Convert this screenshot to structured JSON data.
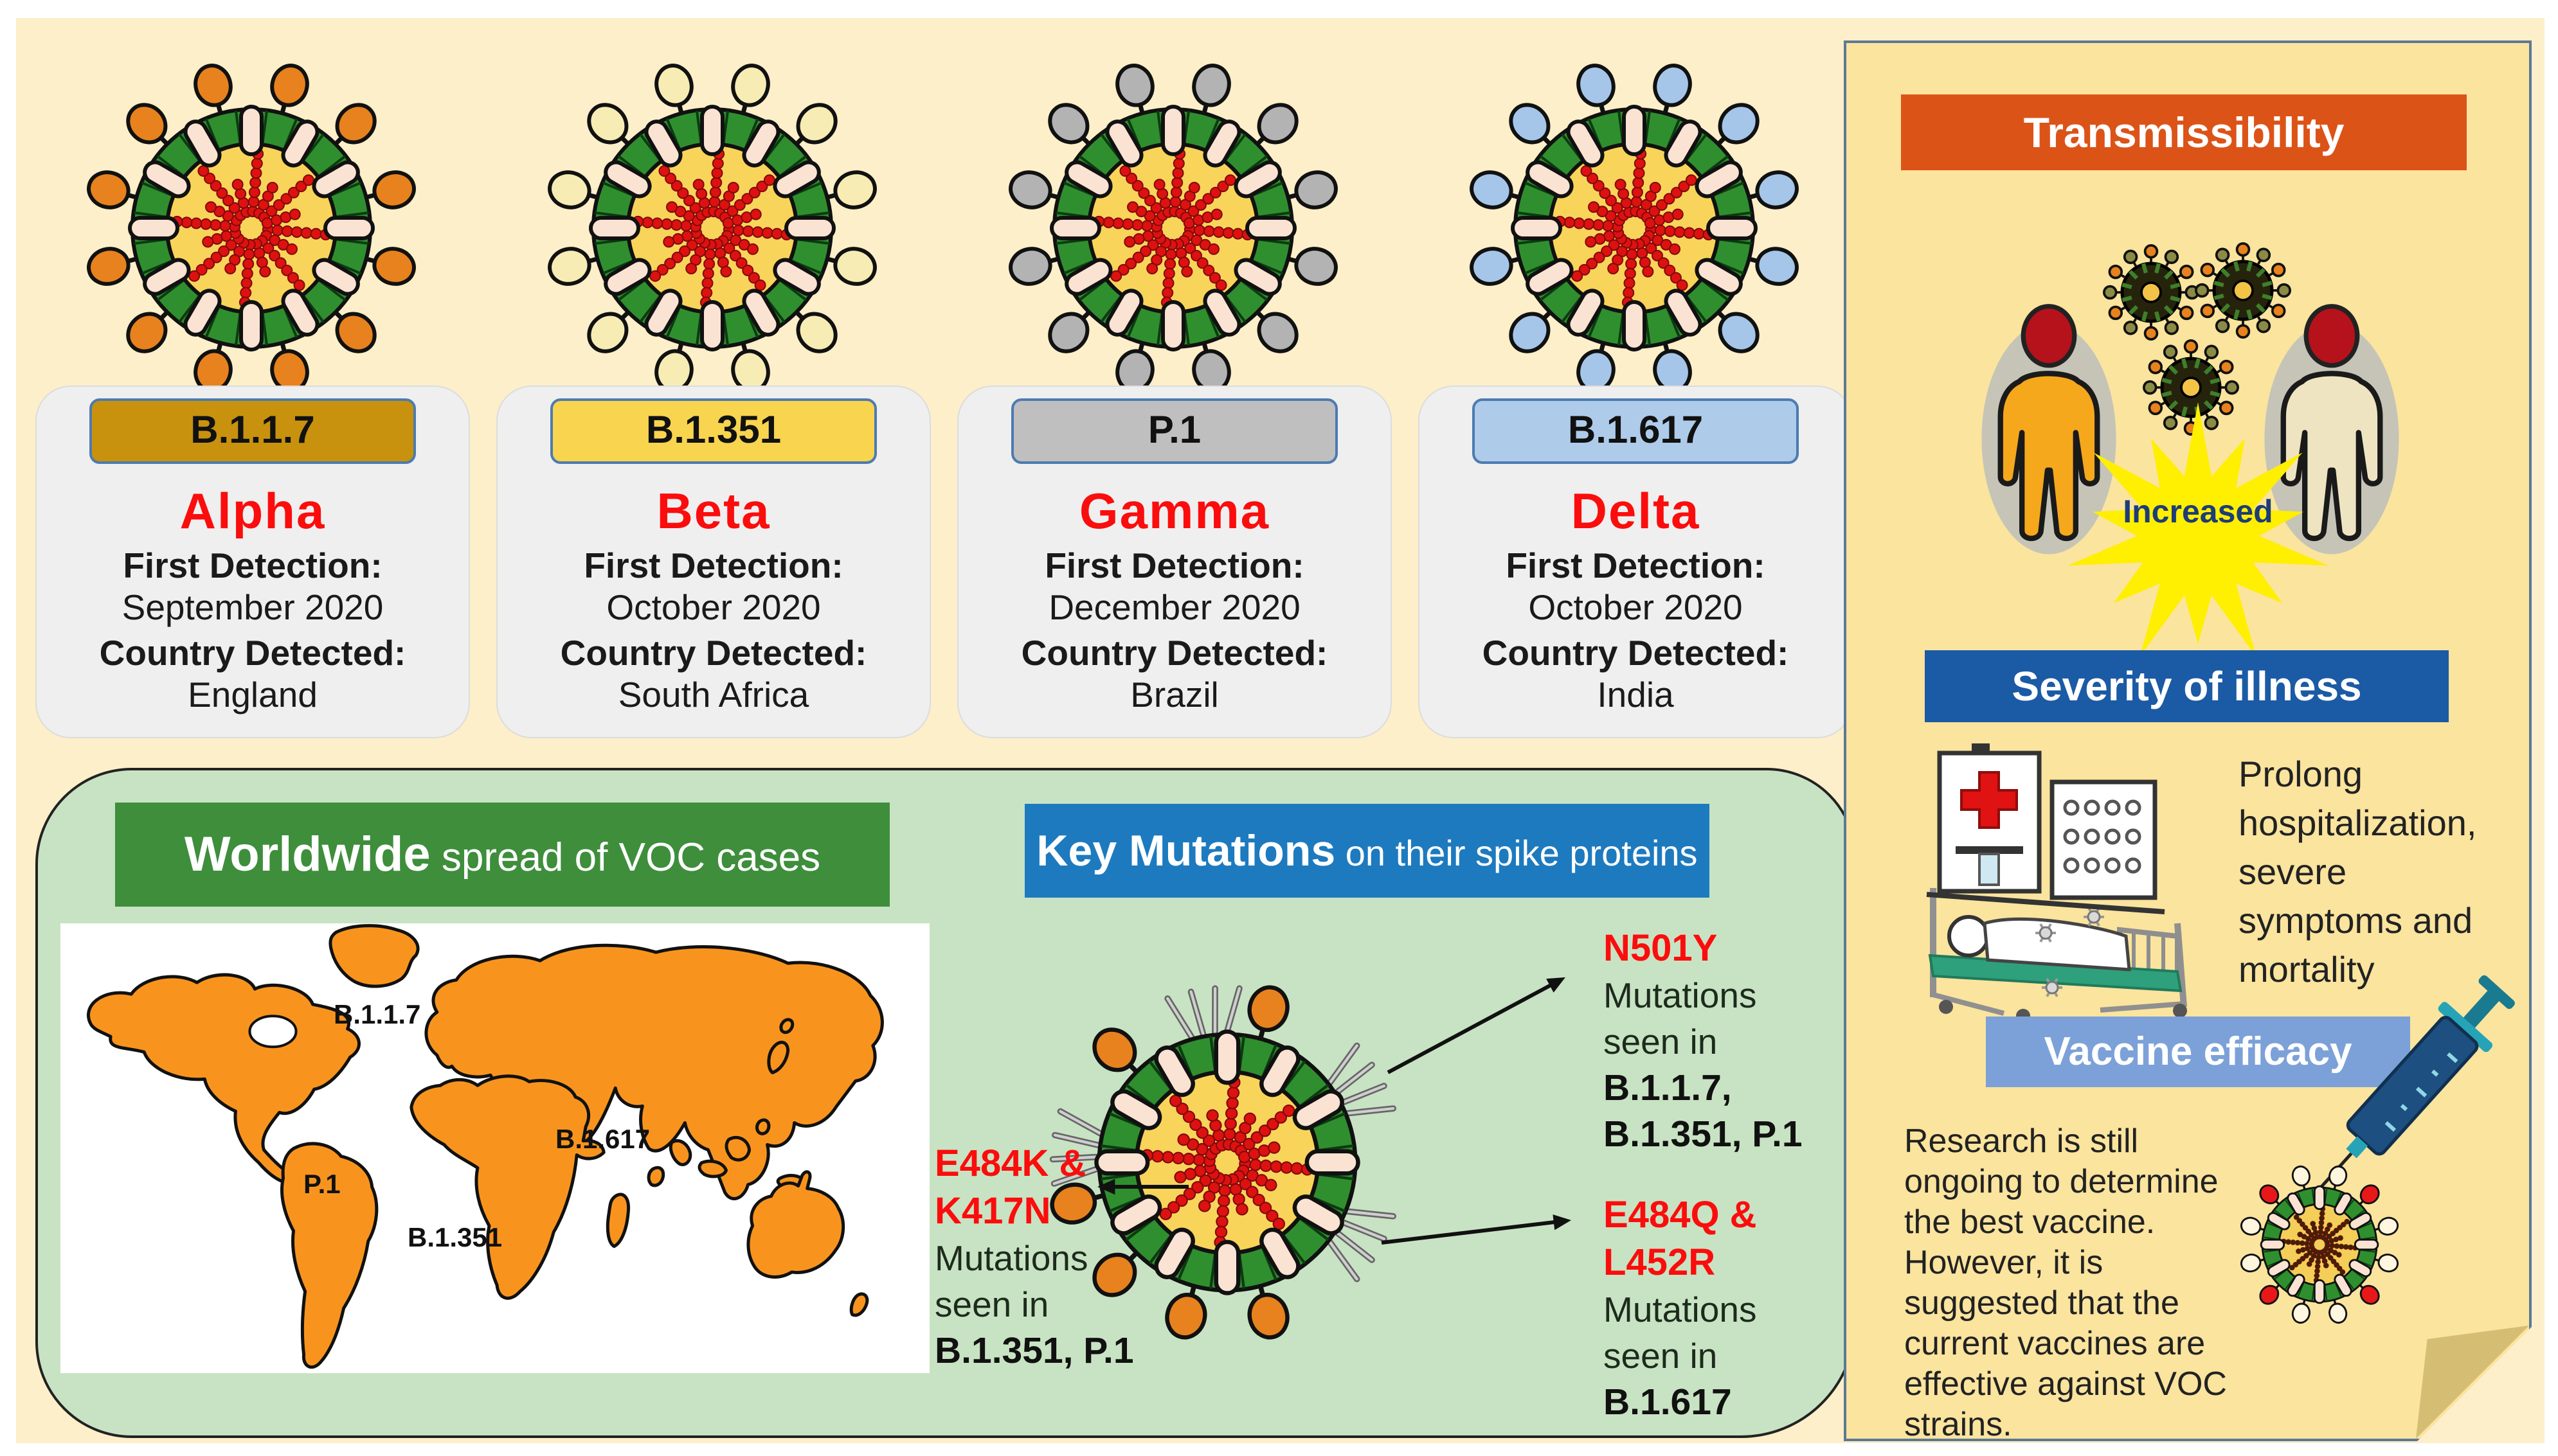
{
  "labels": {
    "first_detection": "First Detection:",
    "country_detected": "Country Detected:"
  },
  "variants": [
    {
      "lineage": "B.1.1.7",
      "greek": "Alpha",
      "first_detection": "September 2020",
      "country": "England",
      "pill_color": "#C8920E",
      "spike_color": "#E8821E"
    },
    {
      "lineage": "B.1.351",
      "greek": "Beta",
      "first_detection": "October 2020",
      "country": "South Africa",
      "pill_color": "#F8D44F",
      "spike_color": "#F7ECB4"
    },
    {
      "lineage": "P.1",
      "greek": "Gamma",
      "first_detection": "December 2020",
      "country": "Brazil",
      "pill_color": "#BFBFBF",
      "spike_color": "#B3B3B3"
    },
    {
      "lineage": "B.1.617",
      "greek": "Delta",
      "first_detection": "October 2020",
      "country": "India",
      "pill_color": "#AECBEA",
      "spike_color": "#A5C6E9"
    }
  ],
  "worldwide": {
    "title_bold": "Worldwide",
    "title_rest": " spread of VOC cases",
    "map_labels": {
      "europe": "B.1.1.7",
      "south_america": "P.1",
      "africa": "B.1.351",
      "india": "B.1.617"
    }
  },
  "key_mutations": {
    "title_bold": "Key Mutations",
    "title_rest": " on their spike proteins",
    "annotations": [
      {
        "mutation": "N501Y",
        "desc": "Mutations\nseen in",
        "strains": "B.1.1.7,\nB.1.351, P.1"
      },
      {
        "mutation": "E484K &\nK417N",
        "desc": "Mutations\nseen in",
        "strains": "B.1.351, P.1"
      },
      {
        "mutation": "E484Q &\nL452R",
        "desc": "Mutations\nseen in",
        "strains": "B.1.617"
      }
    ]
  },
  "sidebar": {
    "transmissibility": {
      "title": "Transmissibility",
      "badge": "Increased"
    },
    "severity": {
      "title": "Severity of illness",
      "text": "Prolong\nhospitalization,\nsevere\nsymptoms and\nmortality"
    },
    "vaccine": {
      "title": "Vaccine efficacy",
      "text": "Research is still\nongoing to determine\nthe best vaccine.\nHowever, it is\nsuggested that the\ncurrent vaccines are\neffective against VOC\nstrains."
    }
  },
  "colors": {
    "page_bg": "#FCEFC9",
    "panel_bg": "#FAE49E",
    "panel_border": "#5C7995",
    "green_box": "#C8E3C3",
    "green_header": "#3E8E3C",
    "blue_header": "#1D7ABF",
    "transmissibility_header": "#DC5318",
    "severity_header": "#1B5AA5",
    "vaccine_header": "#7CA1D8",
    "card_bg": "#EFEFEF",
    "map_land": "#F8941E",
    "mutation_red": "#FB0D0D",
    "star_yellow": "#FFEF00",
    "increased_text": "#1D3C78"
  }
}
